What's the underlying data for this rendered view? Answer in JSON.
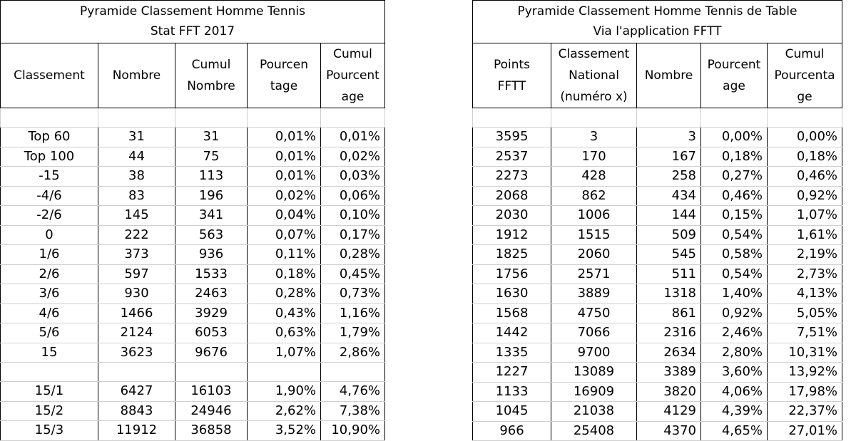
{
  "left": {
    "title": [
      "Pyramide Classement Homme Tennis",
      "Stat FFT 2017"
    ],
    "headers": [
      [
        "Classement"
      ],
      [
        "Nombre"
      ],
      [
        "Cumul",
        "Nombre"
      ],
      [
        "Pourcen",
        "tage"
      ],
      [
        "Cumul",
        "Pourcent",
        "age"
      ]
    ],
    "rows": [
      [
        "Top 60",
        "31",
        "31",
        "0,01%",
        "0,01%"
      ],
      [
        "Top 100",
        "44",
        "75",
        "0,01%",
        "0,02%"
      ],
      [
        "-15",
        "38",
        "113",
        "0,01%",
        "0,03%"
      ],
      [
        "-4/6",
        "83",
        "196",
        "0,02%",
        "0,06%"
      ],
      [
        "-2/6",
        "145",
        "341",
        "0,04%",
        "0,10%"
      ],
      [
        "0",
        "222",
        "563",
        "0,07%",
        "0,17%"
      ],
      [
        "1/6",
        "373",
        "936",
        "0,11%",
        "0,28%"
      ],
      [
        "2/6",
        "597",
        "1533",
        "0,18%",
        "0,45%"
      ],
      [
        "3/6",
        "930",
        "2463",
        "0,28%",
        "0,73%"
      ],
      [
        "4/6",
        "1466",
        "3929",
        "0,43%",
        "1,16%"
      ],
      [
        "5/6",
        "2124",
        "6053",
        "0,63%",
        "1,79%"
      ],
      [
        "15",
        "3623",
        "9676",
        "1,07%",
        "2,86%"
      ],
      [
        "",
        "",
        "",
        "",
        ""
      ],
      [
        "15/1",
        "6427",
        "16103",
        "1,90%",
        "4,76%"
      ],
      [
        "15/2",
        "8843",
        "24946",
        "2,62%",
        "7,38%"
      ],
      [
        "15/3",
        "11912",
        "36858",
        "3,52%",
        "10,90%"
      ]
    ]
  },
  "right": {
    "title": [
      "Pyramide Classement Homme Tennis de Table",
      "Via l'application FFTT"
    ],
    "headers": [
      [
        "Points",
        "FFTT"
      ],
      [
        "Classement",
        "National",
        "(numéro x)"
      ],
      [
        "Nombre"
      ],
      [
        "Pourcent",
        "age"
      ],
      [
        "Cumul",
        "Pourcenta",
        "ge"
      ]
    ],
    "rows": [
      [
        "3595",
        "3",
        "3",
        "0,00%",
        "0,00%"
      ],
      [
        "2537",
        "170",
        "167",
        "0,18%",
        "0,18%"
      ],
      [
        "2273",
        "428",
        "258",
        "0,27%",
        "0,46%"
      ],
      [
        "2068",
        "862",
        "434",
        "0,46%",
        "0,92%"
      ],
      [
        "2030",
        "1006",
        "144",
        "0,15%",
        "1,07%"
      ],
      [
        "1912",
        "1515",
        "509",
        "0,54%",
        "1,61%"
      ],
      [
        "1825",
        "2060",
        "545",
        "0,58%",
        "2,19%"
      ],
      [
        "1756",
        "2571",
        "511",
        "0,54%",
        "2,73%"
      ],
      [
        "1630",
        "3889",
        "1318",
        "1,40%",
        "4,13%"
      ],
      [
        "1568",
        "4750",
        "861",
        "0,92%",
        "5,05%"
      ],
      [
        "1442",
        "7066",
        "2316",
        "2,46%",
        "7,51%"
      ],
      [
        "1335",
        "9700",
        "2634",
        "2,80%",
        "10,31%"
      ],
      [
        "1227",
        "13089",
        "3389",
        "3,60%",
        "13,92%"
      ],
      [
        "1133",
        "16909",
        "3820",
        "4,06%",
        "17,98%"
      ],
      [
        "1045",
        "21038",
        "4129",
        "4,39%",
        "22,37%"
      ],
      [
        "966",
        "25408",
        "4370",
        "4,65%",
        "27,01%"
      ]
    ]
  }
}
